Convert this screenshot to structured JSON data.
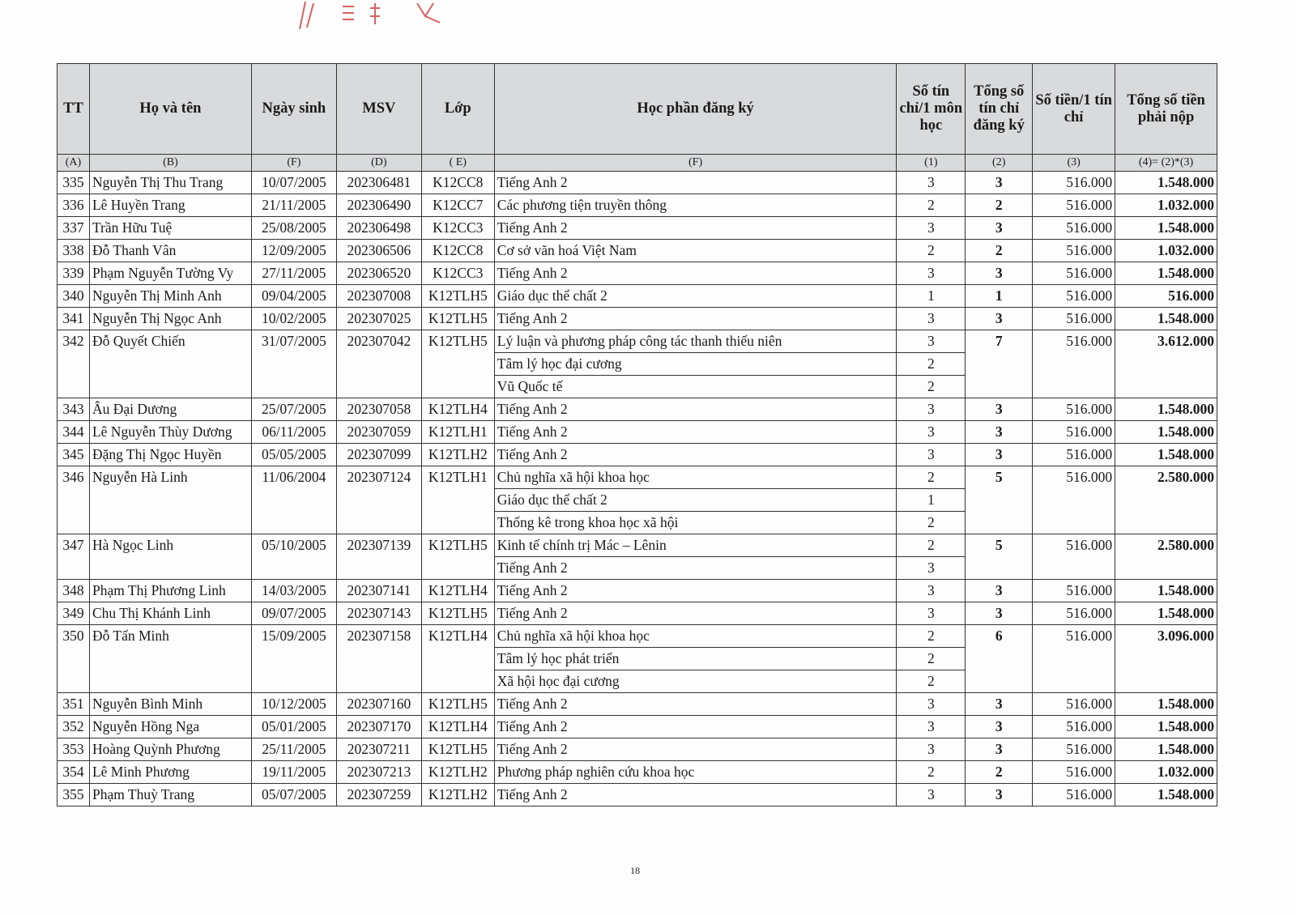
{
  "header": {
    "tt": "TT",
    "name": "Họ và tên",
    "dob": "Ngày sinh",
    "msv": "MSV",
    "class": "Lớp",
    "course": "Học phần đăng ký",
    "credits_per": "Số tín chỉ/1 môn học",
    "total_credits": "Tổng số tín chỉ đăng ký",
    "price": "Số tiền/1 tín chỉ",
    "amount": "Tổng số tiền phải nộp"
  },
  "subheader": {
    "tt": "(A)",
    "name": "(B)",
    "dob": "(F)",
    "msv": "(D)",
    "class": "( E)",
    "course": "(F)",
    "credits_per": "(1)",
    "total_credits": "(2)",
    "price": "(3)",
    "amount": "(4)= (2)*(3)"
  },
  "rows": [
    {
      "tt": "335",
      "name": "Nguyễn Thị Thu Trang",
      "dob": "10/07/2005",
      "msv": "202306481",
      "class": "K12CC8",
      "courses": [
        [
          "Tiếng Anh 2",
          "3"
        ]
      ],
      "total": "3",
      "price": "516.000",
      "amount": "1.548.000"
    },
    {
      "tt": "336",
      "name": "Lê Huyền Trang",
      "dob": "21/11/2005",
      "msv": "202306490",
      "class": "K12CC7",
      "courses": [
        [
          "Các phương tiện truyền thông",
          "2"
        ]
      ],
      "total": "2",
      "price": "516.000",
      "amount": "1.032.000"
    },
    {
      "tt": "337",
      "name": "Trần Hữu Tuệ",
      "dob": "25/08/2005",
      "msv": "202306498",
      "class": "K12CC3",
      "courses": [
        [
          "Tiếng Anh 2",
          "3"
        ]
      ],
      "total": "3",
      "price": "516.000",
      "amount": "1.548.000"
    },
    {
      "tt": "338",
      "name": "Đỗ Thanh Vân",
      "dob": "12/09/2005",
      "msv": "202306506",
      "class": "K12CC8",
      "courses": [
        [
          "Cơ sở văn hoá Việt Nam",
          "2"
        ]
      ],
      "total": "2",
      "price": "516.000",
      "amount": "1.032.000"
    },
    {
      "tt": "339",
      "name": "Phạm Nguyễn Tường Vy",
      "dob": "27/11/2005",
      "msv": "202306520",
      "class": "K12CC3",
      "courses": [
        [
          "Tiếng Anh 2",
          "3"
        ]
      ],
      "total": "3",
      "price": "516.000",
      "amount": "1.548.000"
    },
    {
      "tt": "340",
      "name": "Nguyễn Thị Minh Anh",
      "dob": "09/04/2005",
      "msv": "202307008",
      "class": "K12TLH5",
      "courses": [
        [
          "Giáo dục thể chất 2",
          "1"
        ]
      ],
      "total": "1",
      "price": "516.000",
      "amount": "516.000"
    },
    {
      "tt": "341",
      "name": "Nguyễn Thị Ngọc Anh",
      "dob": "10/02/2005",
      "msv": "202307025",
      "class": "K12TLH5",
      "courses": [
        [
          "Tiếng Anh 2",
          "3"
        ]
      ],
      "total": "3",
      "price": "516.000",
      "amount": "1.548.000"
    },
    {
      "tt": "342",
      "name": "Đỗ Quyết Chiến",
      "dob": "31/07/2005",
      "msv": "202307042",
      "class": "K12TLH5",
      "courses": [
        [
          "Lý luận và phương pháp công tác thanh thiếu niên",
          "3"
        ],
        [
          "Tâm lý học đại cương",
          "2"
        ],
        [
          "Vũ Quốc tế",
          "2"
        ]
      ],
      "total": "7",
      "price": "516.000",
      "amount": "3.612.000"
    },
    {
      "tt": "343",
      "name": "Âu Đại Dương",
      "dob": "25/07/2005",
      "msv": "202307058",
      "class": "K12TLH4",
      "courses": [
        [
          "Tiếng Anh 2",
          "3"
        ]
      ],
      "total": "3",
      "price": "516.000",
      "amount": "1.548.000"
    },
    {
      "tt": "344",
      "name": "Lê Nguyễn Thùy Dương",
      "dob": "06/11/2005",
      "msv": "202307059",
      "class": "K12TLH1",
      "courses": [
        [
          "Tiếng Anh 2",
          "3"
        ]
      ],
      "total": "3",
      "price": "516.000",
      "amount": "1.548.000"
    },
    {
      "tt": "345",
      "name": "Đặng Thị Ngọc Huyền",
      "dob": "05/05/2005",
      "msv": "202307099",
      "class": "K12TLH2",
      "courses": [
        [
          "Tiếng Anh 2",
          "3"
        ]
      ],
      "total": "3",
      "price": "516.000",
      "amount": "1.548.000"
    },
    {
      "tt": "346",
      "name": "Nguyễn Hà Linh",
      "dob": "11/06/2004",
      "msv": "202307124",
      "class": "K12TLH1",
      "courses": [
        [
          "Chủ nghĩa xã hội khoa học",
          "2"
        ],
        [
          "Giáo dục thể chất 2",
          "1"
        ],
        [
          "Thống kê trong khoa học xã hội",
          "2"
        ]
      ],
      "total": "5",
      "price": "516.000",
      "amount": "2.580.000"
    },
    {
      "tt": "347",
      "name": "Hà Ngọc Linh",
      "dob": "05/10/2005",
      "msv": "202307139",
      "class": "K12TLH5",
      "courses": [
        [
          "Kinh tế chính trị Mác – Lênin",
          "2"
        ],
        [
          "Tiếng Anh 2",
          "3"
        ]
      ],
      "total": "5",
      "price": "516.000",
      "amount": "2.580.000"
    },
    {
      "tt": "348",
      "name": "Phạm Thị Phương Linh",
      "dob": "14/03/2005",
      "msv": "202307141",
      "class": "K12TLH4",
      "courses": [
        [
          "Tiếng Anh 2",
          "3"
        ]
      ],
      "total": "3",
      "price": "516.000",
      "amount": "1.548.000"
    },
    {
      "tt": "349",
      "name": "Chu Thị Khánh Linh",
      "dob": "09/07/2005",
      "msv": "202307143",
      "class": "K12TLH5",
      "courses": [
        [
          "Tiếng Anh 2",
          "3"
        ]
      ],
      "total": "3",
      "price": "516.000",
      "amount": "1.548.000"
    },
    {
      "tt": "350",
      "name": "Đỗ Tấn Minh",
      "dob": "15/09/2005",
      "msv": "202307158",
      "class": "K12TLH4",
      "courses": [
        [
          "Chủ nghĩa xã hội khoa học",
          "2"
        ],
        [
          "Tâm lý học phát triển",
          "2"
        ],
        [
          "Xã hội học đại cương",
          "2"
        ]
      ],
      "total": "6",
      "price": "516.000",
      "amount": "3.096.000"
    },
    {
      "tt": "351",
      "name": "Nguyễn Bình Minh",
      "dob": "10/12/2005",
      "msv": "202307160",
      "class": "K12TLH5",
      "courses": [
        [
          "Tiếng Anh 2",
          "3"
        ]
      ],
      "total": "3",
      "price": "516.000",
      "amount": "1.548.000"
    },
    {
      "tt": "352",
      "name": "Nguyễn Hồng Nga",
      "dob": "05/01/2005",
      "msv": "202307170",
      "class": "K12TLH4",
      "courses": [
        [
          "Tiếng Anh 2",
          "3"
        ]
      ],
      "total": "3",
      "price": "516.000",
      "amount": "1.548.000"
    },
    {
      "tt": "353",
      "name": "Hoàng Quỳnh Phương",
      "dob": "25/11/2005",
      "msv": "202307211",
      "class": "K12TLH5",
      "courses": [
        [
          "Tiếng Anh 2",
          "3"
        ]
      ],
      "total": "3",
      "price": "516.000",
      "amount": "1.548.000"
    },
    {
      "tt": "354",
      "name": "Lê Minh Phương",
      "dob": "19/11/2005",
      "msv": "202307213",
      "class": "K12TLH2",
      "courses": [
        [
          "Phương pháp nghiên cứu khoa học",
          "2"
        ]
      ],
      "total": "2",
      "price": "516.000",
      "amount": "1.032.000"
    },
    {
      "tt": "355",
      "name": "Phạm Thuỳ Trang",
      "dob": "05/07/2005",
      "msv": "202307259",
      "class": "K12TLH2",
      "courses": [
        [
          "Tiếng Anh 2",
          "3"
        ]
      ],
      "total": "3",
      "price": "516.000",
      "amount": "1.548.000"
    }
  ],
  "page_number": "18",
  "colors": {
    "header_bg": "#d9dadc",
    "stamp": "#d23a3a"
  }
}
